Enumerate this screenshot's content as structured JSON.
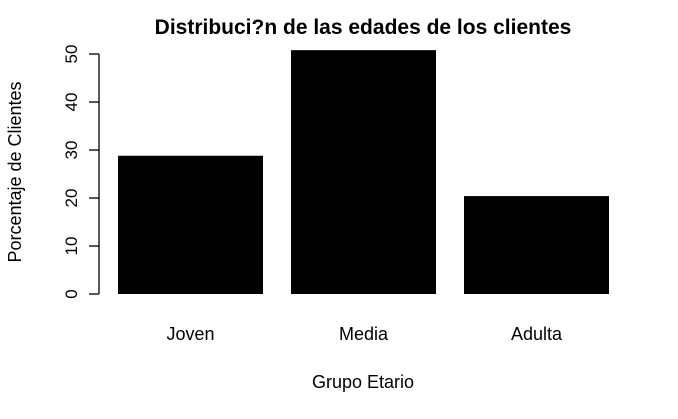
{
  "chart_data": {
    "type": "bar",
    "title": "Distribuci?n de las edades de los clientes",
    "xlabel": "Grupo Etario",
    "ylabel": "Porcentaje de Clientes",
    "categories": [
      "Joven",
      "Media",
      "Adulta"
    ],
    "values": [
      28.8,
      50.8,
      20.4
    ],
    "ylim": [
      0,
      50
    ],
    "yticks": [
      "0",
      "10",
      "20",
      "30",
      "40",
      "50"
    ],
    "grid": false,
    "legend": "none",
    "bar_color": "#000000"
  }
}
